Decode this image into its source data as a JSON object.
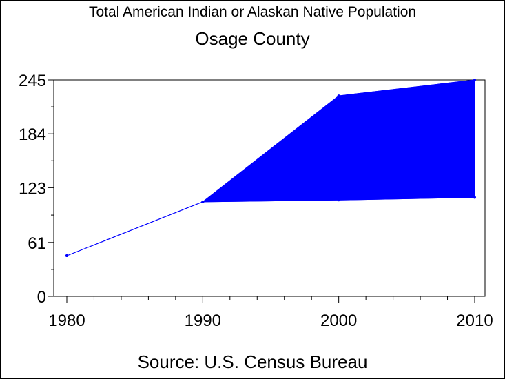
{
  "title": "Total American Indian or Alaskan Native Population",
  "subtitle": "Osage County",
  "source": "Source: U.S. Census Bureau",
  "colors": {
    "series": "#0000ff",
    "axis": "#000000",
    "background": "#ffffff"
  },
  "chart_data": {
    "type": "area",
    "title": "Total American Indian or Alaskan Native Population",
    "subtitle": "Osage County",
    "xlabel": "",
    "ylabel": "",
    "x": [
      1980,
      1990,
      2000,
      2010
    ],
    "x_tick_labels": [
      "1980",
      "1990",
      "2000",
      "2010"
    ],
    "y_tick_labels": [
      "0",
      "61",
      "123",
      "184",
      "245"
    ],
    "y_ticks": [
      0,
      61,
      123,
      184,
      245
    ],
    "xlim": [
      1980,
      2010
    ],
    "ylim": [
      0,
      245
    ],
    "series": [
      {
        "values": [
          46,
          107,
          109,
          112
        ]
      },
      {
        "values": [
          46,
          107,
          227,
          245
        ]
      }
    ],
    "grid": false
  }
}
